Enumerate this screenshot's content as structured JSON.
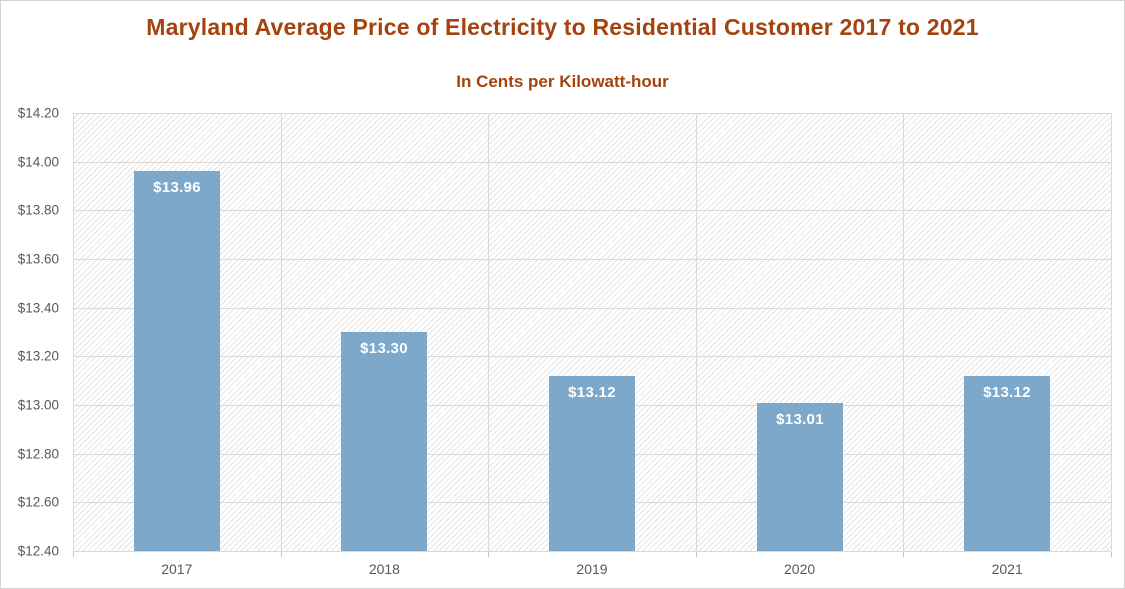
{
  "chart_data": {
    "type": "bar",
    "title": "Maryland Average Price of Electricity to Residential Customer 2017 to 2021",
    "subtitle": "In Cents per Kilowatt-hour",
    "categories": [
      "2017",
      "2018",
      "2019",
      "2020",
      "2021"
    ],
    "values": [
      13.96,
      13.3,
      13.12,
      13.01,
      13.12
    ],
    "data_labels": [
      "$13.96",
      "$13.30",
      "$13.12",
      "$13.01",
      "$13.12"
    ],
    "xlabel": "",
    "ylabel": "",
    "ylim": [
      12.4,
      14.2
    ],
    "ytick_step": 0.2,
    "ytick_labels": [
      "$12.40",
      "$12.60",
      "$12.80",
      "$13.00",
      "$13.20",
      "$13.40",
      "$13.60",
      "$13.80",
      "$14.00",
      "$14.20"
    ],
    "grid": true,
    "legend_position": "none",
    "bar_color": "#7da8ca",
    "data_label_color": "#ffffff",
    "title_color": "#a5430e",
    "axis_label_color": "#595959",
    "gridline_color": "#d9d9d9",
    "plot_hatch": "light-upward-diagonal"
  }
}
